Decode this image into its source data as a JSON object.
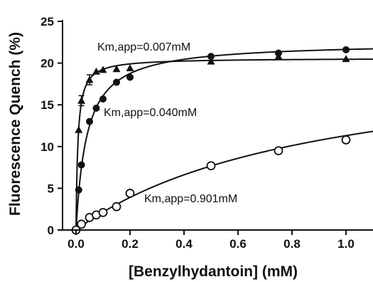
{
  "chart_data": {
    "type": "scatter",
    "title": "",
    "xlabel": "[Benzylhydantoin] (mM)",
    "ylabel": "Fluorescence Quench (%)",
    "xlim": [
      -0.05,
      1.1
    ],
    "ylim": [
      0,
      25
    ],
    "xticks": [
      "0.0",
      "0.2",
      "0.4",
      "0.6",
      "0.8",
      "1.0"
    ],
    "yticks": [
      "0",
      "5",
      "10",
      "15",
      "20",
      "25"
    ],
    "grid": false,
    "legend": "none",
    "series": [
      {
        "marker": "filled-triangle",
        "points": [
          {
            "x": 0.0,
            "y": 0.0
          },
          {
            "x": 0.01,
            "y": 12.0
          },
          {
            "x": 0.02,
            "y": 15.5,
            "err": 0.6
          },
          {
            "x": 0.05,
            "y": 18.0,
            "err": 0.6
          },
          {
            "x": 0.075,
            "y": 19.0
          },
          {
            "x": 0.1,
            "y": 19.2
          },
          {
            "x": 0.15,
            "y": 19.3
          },
          {
            "x": 0.2,
            "y": 19.4
          },
          {
            "x": 0.5,
            "y": 20.2
          },
          {
            "x": 0.75,
            "y": 20.8
          },
          {
            "x": 1.0,
            "y": 20.5
          }
        ],
        "fit": {
          "model": "hyperbolic",
          "vmax": 20.6,
          "km": 0.007
        },
        "annotation": "Km,app=0.007mM"
      },
      {
        "marker": "filled-circle",
        "points": [
          {
            "x": 0.0,
            "y": 0.0
          },
          {
            "x": 0.01,
            "y": 4.8
          },
          {
            "x": 0.02,
            "y": 7.8
          },
          {
            "x": 0.05,
            "y": 13.0
          },
          {
            "x": 0.075,
            "y": 14.6
          },
          {
            "x": 0.1,
            "y": 15.7
          },
          {
            "x": 0.15,
            "y": 17.7
          },
          {
            "x": 0.2,
            "y": 18.3
          },
          {
            "x": 0.5,
            "y": 20.8
          },
          {
            "x": 0.75,
            "y": 21.2
          },
          {
            "x": 1.0,
            "y": 21.6
          }
        ],
        "fit": {
          "model": "hyperbolic",
          "vmax": 22.5,
          "km": 0.04
        },
        "annotation": "Km,app=0.040mM"
      },
      {
        "marker": "open-circle",
        "points": [
          {
            "x": 0.0,
            "y": 0.0
          },
          {
            "x": 0.02,
            "y": 0.7
          },
          {
            "x": 0.05,
            "y": 1.5
          },
          {
            "x": 0.075,
            "y": 1.8
          },
          {
            "x": 0.1,
            "y": 2.1
          },
          {
            "x": 0.15,
            "y": 2.8
          },
          {
            "x": 0.2,
            "y": 4.4
          },
          {
            "x": 0.5,
            "y": 7.7
          },
          {
            "x": 0.75,
            "y": 9.5
          },
          {
            "x": 1.0,
            "y": 10.8
          }
        ],
        "fit": {
          "model": "hyperbolic",
          "vmax": 21.5,
          "km": 0.901
        },
        "annotation": "Km,app=0.901mM"
      }
    ]
  }
}
